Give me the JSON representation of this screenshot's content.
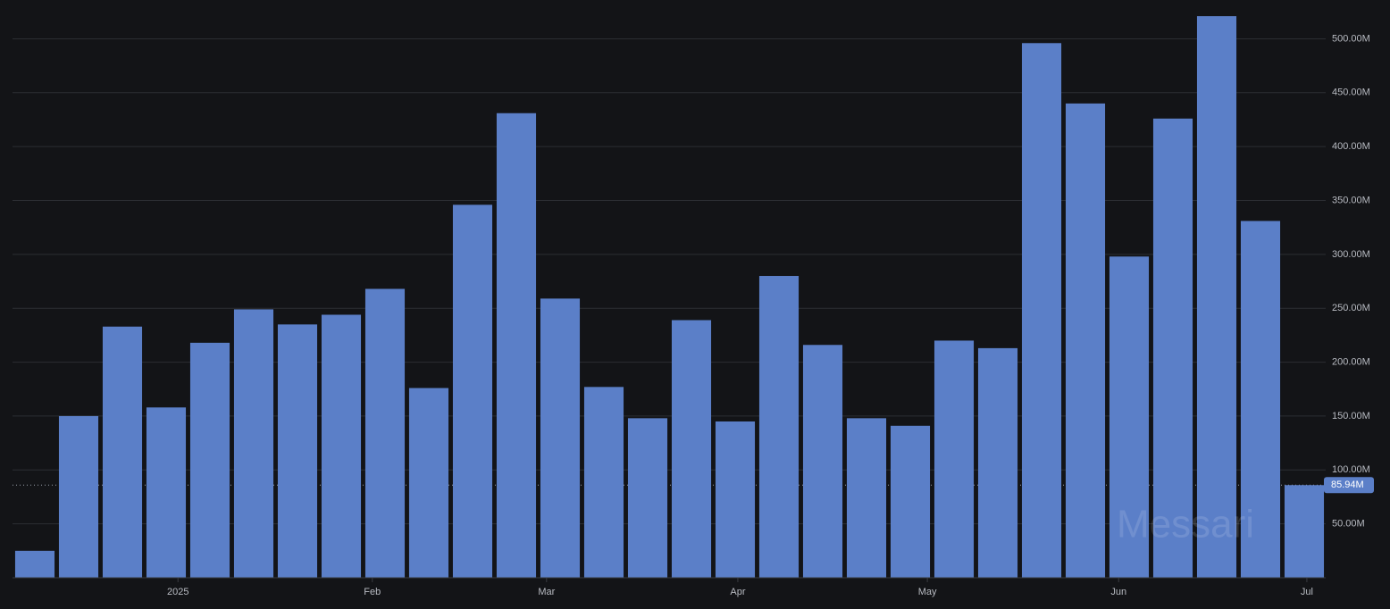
{
  "chart_data": {
    "type": "bar",
    "watermark": "Messari",
    "color": "#5b7fc8",
    "values": [
      25,
      150,
      233,
      158,
      218,
      249,
      235,
      244,
      268,
      176,
      346,
      431,
      259,
      177,
      148,
      239,
      145,
      280,
      216,
      148,
      141,
      220,
      213,
      496,
      440,
      298,
      426,
      521,
      331,
      85.94
    ],
    "value_labels": [
      null,
      null,
      null,
      null,
      null,
      null,
      null,
      null,
      null,
      null,
      null,
      null,
      null,
      null,
      null,
      null,
      null,
      null,
      null,
      null,
      null,
      null,
      null,
      null,
      null,
      null,
      null,
      null,
      null,
      "85.94M"
    ],
    "xlim": [
      -0.5,
      29.5
    ],
    "xticks": [
      {
        "value": 3.27,
        "label": "2025"
      },
      {
        "value": 7.71,
        "label": "Feb"
      },
      {
        "value": 11.69,
        "label": "Mar"
      },
      {
        "value": 16.06,
        "label": "Apr"
      },
      {
        "value": 20.39,
        "label": "May"
      },
      {
        "value": 24.76,
        "label": "Jun"
      },
      {
        "value": 29.06,
        "label": "Jul"
      }
    ],
    "ylim": [
      0,
      536
    ],
    "yticks": [
      {
        "value": 50,
        "label": "50.00M"
      },
      {
        "value": 100,
        "label": "100.00M"
      },
      {
        "value": 150,
        "label": "150.00M"
      },
      {
        "value": 200,
        "label": "200.00M"
      },
      {
        "value": 250,
        "label": "250.00M"
      },
      {
        "value": 300,
        "label": "300.00M"
      },
      {
        "value": 350,
        "label": "350.00M"
      },
      {
        "value": 400,
        "label": "400.00M"
      },
      {
        "value": 450,
        "label": "450.00M"
      },
      {
        "value": 500,
        "label": "500.00M"
      }
    ],
    "grid": true
  }
}
